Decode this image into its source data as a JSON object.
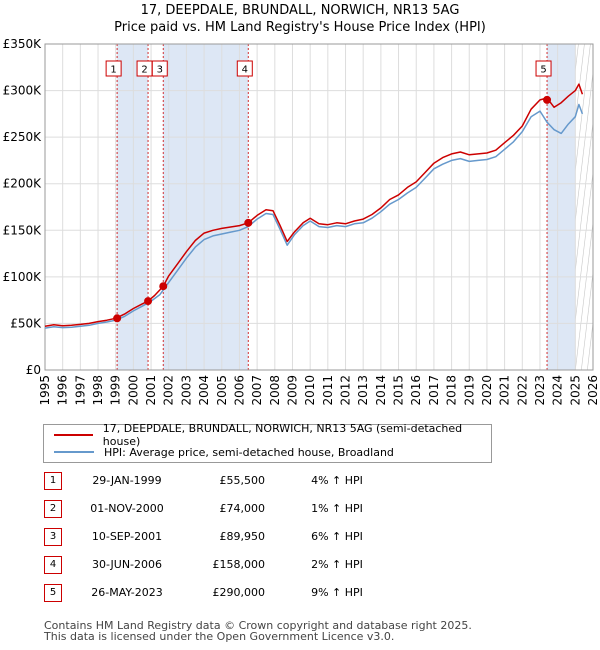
{
  "title_line1": "17, DEEPDALE, BRUNDALL, NORWICH, NR13 5AG",
  "title_line2": "Price paid vs. HM Land Registry's House Price Index (HPI)",
  "legend": {
    "property_label": "17, DEEPDALE, BRUNDALL, NORWICH, NR13 5AG (semi-detached house)",
    "hpi_label": "HPI: Average price, semi-detached house, Broadland"
  },
  "colors": {
    "property": "#cc0000",
    "hpi": "#6699cc",
    "shade": "#dde7f5",
    "grid": "#dddddd"
  },
  "sales": [
    {
      "num": "1",
      "date": "29-JAN-1999",
      "price": "£55,500",
      "hpi": "4% ↑ HPI"
    },
    {
      "num": "2",
      "date": "01-NOV-2000",
      "price": "£74,000",
      "hpi": "1% ↑ HPI"
    },
    {
      "num": "3",
      "date": "10-SEP-2001",
      "price": "£89,950",
      "hpi": "6% ↑ HPI"
    },
    {
      "num": "4",
      "date": "30-JUN-2006",
      "price": "£158,000",
      "hpi": "2% ↑ HPI"
    },
    {
      "num": "5",
      "date": "26-MAY-2023",
      "price": "£290,000",
      "hpi": "9% ↑ HPI"
    }
  ],
  "footer": {
    "line1": "Contains HM Land Registry data © Crown copyright and database right 2025.",
    "line2": "This data is licensed under the Open Government Licence v3.0."
  },
  "chart_data": {
    "type": "line",
    "title": "17, DEEPDALE, BRUNDALL, NORWICH, NR13 5AG — Price paid vs. HM Land Registry's House Price Index (HPI)",
    "xlim": [
      1995,
      2026
    ],
    "ylim": [
      0,
      350000
    ],
    "y_ticks": [
      0,
      50000,
      100000,
      150000,
      200000,
      250000,
      300000,
      350000
    ],
    "y_tick_labels": [
      "£0",
      "£50K",
      "£100K",
      "£150K",
      "£200K",
      "£250K",
      "£300K",
      "£350K"
    ],
    "x_ticks": [
      1995,
      1996,
      1997,
      1998,
      1999,
      2000,
      2001,
      2002,
      2003,
      2004,
      2005,
      2006,
      2007,
      2008,
      2009,
      2010,
      2011,
      2012,
      2013,
      2014,
      2015,
      2016,
      2017,
      2018,
      2019,
      2020,
      2021,
      2022,
      2023,
      2024,
      2025,
      2026
    ],
    "shaded_ranges": [
      [
        1999.08,
        2000.83
      ],
      [
        2001.69,
        2006.5
      ],
      [
        2023.4,
        2025.0
      ]
    ],
    "forecast_start": 2025.0,
    "sale_markers": [
      {
        "label": "1",
        "x": 1999.08,
        "y": 55500
      },
      {
        "label": "2",
        "x": 2000.83,
        "y": 74000
      },
      {
        "label": "3",
        "x": 2001.69,
        "y": 89950
      },
      {
        "label": "4",
        "x": 2006.5,
        "y": 158000
      },
      {
        "label": "5",
        "x": 2023.4,
        "y": 290000
      }
    ],
    "series": [
      {
        "name": "17, DEEPDALE, BRUNDALL, NORWICH, NR13 5AG (semi-detached house)",
        "x": [
          1995,
          1995.5,
          1996,
          1996.5,
          1997,
          1997.5,
          1998,
          1998.5,
          1999,
          1999.5,
          2000,
          2000.5,
          2000.83,
          2001.2,
          2001.69,
          2002,
          2002.5,
          2003,
          2003.5,
          2004,
          2004.5,
          2005,
          2005.5,
          2006,
          2006.5,
          2007,
          2007.5,
          2007.9,
          2008.3,
          2008.7,
          2009.1,
          2009.6,
          2010,
          2010.5,
          2011,
          2011.5,
          2012,
          2012.5,
          2013,
          2013.5,
          2014,
          2014.5,
          2015,
          2015.5,
          2016,
          2016.5,
          2017,
          2017.5,
          2018,
          2018.5,
          2019,
          2019.5,
          2020,
          2020.5,
          2021,
          2021.5,
          2022,
          2022.5,
          2023,
          2023.4,
          2023.8,
          2024.2,
          2024.6,
          2025,
          2025.2,
          2025.4
        ],
        "y": [
          47000,
          48500,
          47500,
          48000,
          49000,
          50000,
          52000,
          53500,
          55500,
          60000,
          66000,
          71000,
          74000,
          80000,
          89950,
          101000,
          114000,
          127000,
          139000,
          147000,
          150000,
          152000,
          153500,
          155000,
          158000,
          166000,
          172000,
          171000,
          155000,
          138000,
          148000,
          158000,
          163000,
          157000,
          156000,
          158000,
          157000,
          160000,
          162000,
          167000,
          174000,
          183000,
          188000,
          196000,
          202000,
          212000,
          222000,
          228000,
          232000,
          234000,
          231000,
          232000,
          233000,
          236000,
          244000,
          252000,
          262000,
          280000,
          290000,
          292000,
          282000,
          287000,
          294000,
          300000,
          307000,
          296000
        ]
      },
      {
        "name": "HPI: Average price, semi-detached house, Broadland",
        "x": [
          1995,
          1995.5,
          1996,
          1996.5,
          1997,
          1997.5,
          1998,
          1998.5,
          1999,
          1999.5,
          2000,
          2000.5,
          2001,
          2001.5,
          2002,
          2002.5,
          2003,
          2003.5,
          2004,
          2004.5,
          2005,
          2005.5,
          2006,
          2006.5,
          2007,
          2007.5,
          2007.9,
          2008.3,
          2008.7,
          2009.1,
          2009.6,
          2010,
          2010.5,
          2011,
          2011.5,
          2012,
          2012.5,
          2013,
          2013.5,
          2014,
          2014.5,
          2015,
          2015.5,
          2016,
          2016.5,
          2017,
          2017.5,
          2018,
          2018.5,
          2019,
          2019.5,
          2020,
          2020.5,
          2021,
          2021.5,
          2022,
          2022.5,
          2023,
          2023.4,
          2023.8,
          2024.2,
          2024.6,
          2025,
          2025.2,
          2025.4
        ],
        "y": [
          45000,
          46500,
          45500,
          46000,
          47000,
          48000,
          50000,
          51500,
          53500,
          57500,
          63500,
          68500,
          74000,
          81000,
          94000,
          107000,
          120000,
          132000,
          140000,
          144000,
          146000,
          148000,
          150000,
          154000,
          162000,
          168000,
          167000,
          151000,
          134000,
          145000,
          155000,
          160000,
          154000,
          153000,
          155000,
          154000,
          157000,
          158000,
          163000,
          170000,
          178000,
          183000,
          190000,
          196000,
          206000,
          216000,
          221000,
          225000,
          227000,
          224000,
          225000,
          226000,
          229000,
          237000,
          245000,
          256000,
          272000,
          278000,
          266000,
          258000,
          254000,
          264000,
          272000,
          285000,
          275000
        ]
      }
    ]
  }
}
